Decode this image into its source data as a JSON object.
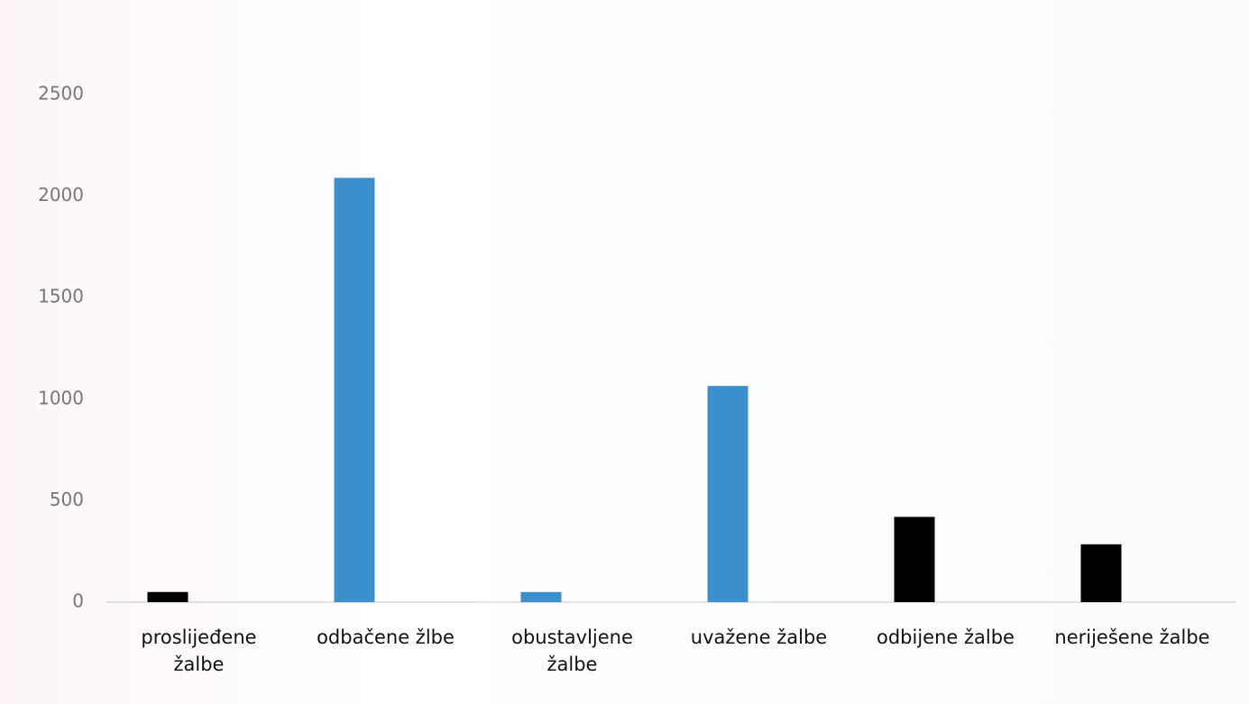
{
  "chart_data": {
    "type": "bar",
    "categories": [
      "proslijeđene žalbe",
      "odbačene žlbe",
      "obustavljene žalbe",
      "uvažene žalbe",
      "odbijene žalbe",
      "neriješene žalbe"
    ],
    "values": [
      50,
      2090,
      50,
      1065,
      420,
      285
    ],
    "colors": [
      "#000000",
      "#3a8fcc",
      "#3a8fcc",
      "#3a8fcc",
      "#000000",
      "#000000"
    ],
    "ylim": [
      0,
      2500
    ],
    "yticks": [
      0,
      500,
      1000,
      1500,
      2000,
      2500
    ],
    "grid": false
  }
}
